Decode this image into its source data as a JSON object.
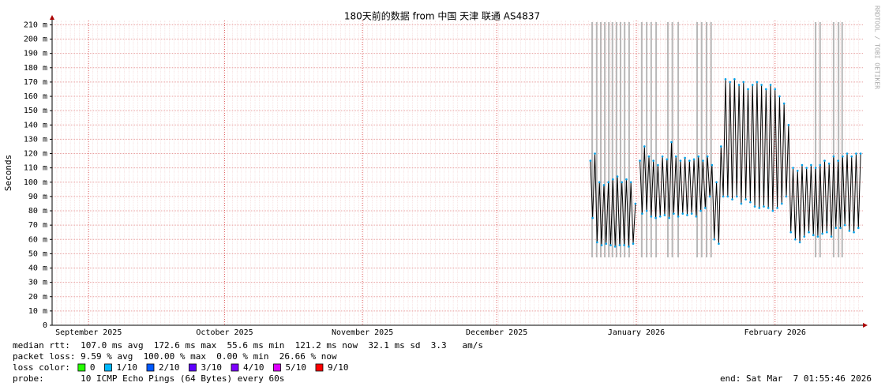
{
  "chart_data": {
    "type": "line",
    "title": "180天前的数据 from 中国 天津 联通 AS4837",
    "y_label": "Seconds",
    "credit": "RRDTOOL / TOBI OETIKER",
    "xlim": [
      0,
      180
    ],
    "xticks": [
      {
        "value": 8.1,
        "label": "September 2025"
      },
      {
        "value": 38.3,
        "label": "October 2025"
      },
      {
        "value": 68.9,
        "label": "November 2025"
      },
      {
        "value": 98.7,
        "label": "December 2025"
      },
      {
        "value": 129.7,
        "label": "January 2026"
      },
      {
        "value": 160.5,
        "label": "February 2026"
      }
    ],
    "ylim": [
      0,
      0.213
    ],
    "yticks": [
      {
        "value": 0,
        "label": "0"
      },
      {
        "value": 0.01,
        "label": "10 m"
      },
      {
        "value": 0.02,
        "label": "20 m"
      },
      {
        "value": 0.03,
        "label": "30 m"
      },
      {
        "value": 0.04,
        "label": "40 m"
      },
      {
        "value": 0.05,
        "label": "50 m"
      },
      {
        "value": 0.06,
        "label": "60 m"
      },
      {
        "value": 0.07,
        "label": "70 m"
      },
      {
        "value": 0.08,
        "label": "80 m"
      },
      {
        "value": 0.09,
        "label": "90 m"
      },
      {
        "value": 0.1,
        "label": "100 m"
      },
      {
        "value": 0.11,
        "label": "110 m"
      },
      {
        "value": 0.12,
        "label": "120 m"
      },
      {
        "value": 0.13,
        "label": "130 m"
      },
      {
        "value": 0.14,
        "label": "140 m"
      },
      {
        "value": 0.15,
        "label": "150 m"
      },
      {
        "value": 0.16,
        "label": "160 m"
      },
      {
        "value": 0.17,
        "label": "170 m"
      },
      {
        "value": 0.18,
        "label": "180 m"
      },
      {
        "value": 0.19,
        "label": "190 m"
      },
      {
        "value": 0.2,
        "label": "200 m"
      },
      {
        "value": 0.21,
        "label": "210 m"
      }
    ],
    "grid": true,
    "x": [
      119.5,
      120,
      120.5,
      121,
      121.5,
      122,
      122.5,
      123,
      123.5,
      124,
      124.5,
      125,
      125.5,
      126,
      126.5,
      127,
      127.5,
      128,
      128.5,
      129,
      129.5,
      130,
      130.5,
      131,
      131.5,
      132,
      132.5,
      133,
      133.5,
      134,
      134.5,
      135,
      135.5,
      136,
      136.5,
      137,
      137.5,
      138,
      138.5,
      139,
      139.5,
      140,
      140.5,
      141,
      141.5,
      142,
      142.5,
      143,
      143.5,
      144,
      144.5,
      145,
      145.5,
      146,
      146.5,
      147,
      147.5,
      148,
      148.5,
      149,
      149.5,
      150,
      150.5,
      151,
      151.5,
      152,
      152.5,
      153,
      153.5,
      154,
      154.5,
      155,
      155.5,
      156,
      156.5,
      157,
      157.5,
      158,
      158.5,
      159,
      159.5,
      160,
      160.5,
      161,
      161.5,
      162,
      162.5,
      163,
      163.5,
      164,
      164.5,
      165,
      165.5,
      166,
      166.5,
      167,
      167.5,
      168,
      168.5,
      169,
      169.5,
      170,
      170.5,
      171,
      171.5,
      172,
      172.5,
      173,
      173.5,
      174,
      174.5,
      175,
      175.5,
      176,
      176.5,
      177,
      177.5,
      178,
      178.5,
      179,
      179.5
    ],
    "series": [
      {
        "color": "#000000",
        "point_color": "#00a0e8",
        "values": [
          0.115,
          0.075,
          0.12,
          0.058,
          0.1,
          0.056,
          0.098,
          0.057,
          0.1,
          0.056,
          0.102,
          0.055,
          0.104,
          0.056,
          0.1,
          0.056,
          0.102,
          0.055,
          0.1,
          0.057,
          0.085,
          null,
          0.115,
          0.078,
          0.125,
          0.08,
          0.118,
          0.076,
          0.115,
          0.075,
          0.112,
          0.076,
          0.118,
          0.077,
          0.116,
          0.075,
          0.128,
          0.078,
          0.118,
          0.076,
          0.115,
          0.078,
          0.117,
          0.077,
          0.115,
          0.078,
          0.116,
          0.076,
          0.118,
          0.08,
          0.115,
          0.082,
          0.118,
          0.09,
          0.112,
          0.06,
          0.1,
          0.057,
          0.125,
          0.09,
          0.172,
          0.09,
          0.17,
          0.088,
          0.172,
          0.09,
          0.168,
          0.085,
          0.17,
          0.088,
          0.165,
          0.086,
          0.168,
          0.083,
          0.17,
          0.082,
          0.168,
          0.083,
          0.165,
          0.082,
          0.168,
          0.08,
          0.165,
          0.082,
          0.16,
          0.085,
          0.155,
          0.09,
          0.14,
          0.065,
          0.11,
          0.06,
          0.108,
          0.058,
          0.112,
          0.062,
          0.11,
          0.065,
          0.112,
          0.063,
          0.11,
          0.062,
          0.112,
          0.064,
          0.115,
          0.065,
          0.113,
          0.062,
          0.118,
          0.068,
          0.115,
          0.068,
          0.118,
          0.07,
          0.12,
          0.066,
          0.118,
          0.065,
          0.12,
          0.068,
          0.12
        ]
      }
    ],
    "loss_x": [
      119.9,
      120.9,
      121.8,
      122.7,
      123.6,
      124.4,
      125.3,
      126.2,
      127.1,
      128.1,
      130.9,
      132.0,
      133.0,
      134.1,
      136.7,
      137.7,
      139.0,
      143.2,
      144.2,
      145.3,
      146.3,
      169.5,
      170.5,
      173.5,
      174.6,
      175.4
    ],
    "loss_color": "#b8b8b8",
    "stats": [
      "median rtt:  107.0 ms avg  172.6 ms max  55.6 ms min  121.2 ms now  32.1 ms sd  3.3   am/s",
      "packet loss: 9.59 % avg  100.00 % max  0.00 % min  26.66 % now"
    ],
    "loss_legend_title": "loss color:",
    "loss_legend": [
      {
        "label": "0",
        "color": "#26ff00"
      },
      {
        "label": "1/10",
        "color": "#00b8ff"
      },
      {
        "label": "2/10",
        "color": "#0059ff"
      },
      {
        "label": "3/10",
        "color": "#5e00ff"
      },
      {
        "label": "4/10",
        "color": "#7e00ff"
      },
      {
        "label": "5/10",
        "color": "#dd00ff"
      },
      {
        "label": "9/10",
        "color": "#ff0000"
      }
    ],
    "probe": "probe:       10 ICMP Echo Pings (64 Bytes) every 60s",
    "end": "end: Sat Mar  7 01:55:46 2026"
  }
}
